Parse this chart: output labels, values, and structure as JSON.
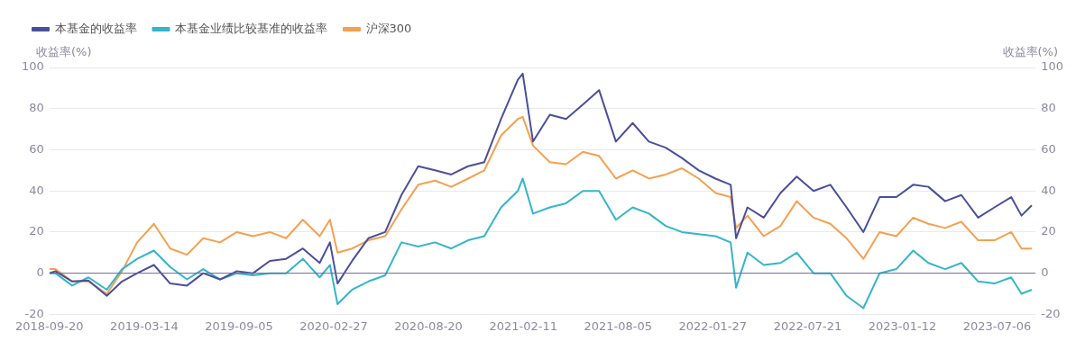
{
  "chart_data": {
    "type": "line",
    "x": [
      "2018-09-20",
      "2018-10-01",
      "2018-11-01",
      "2018-12-01",
      "2019-01-04",
      "2019-02-01",
      "2019-03-01",
      "2019-04-01",
      "2019-05-01",
      "2019-06-01",
      "2019-07-01",
      "2019-08-01",
      "2019-09-01",
      "2019-10-01",
      "2019-11-01",
      "2019-12-01",
      "2020-01-01",
      "2020-02-01",
      "2020-02-20",
      "2020-03-05",
      "2020-04-01",
      "2020-05-01",
      "2020-06-01",
      "2020-07-01",
      "2020-08-01",
      "2020-09-01",
      "2020-10-01",
      "2020-11-01",
      "2020-12-01",
      "2021-01-01",
      "2021-02-01",
      "2021-02-10",
      "2021-03-01",
      "2021-04-01",
      "2021-05-01",
      "2021-06-01",
      "2021-07-01",
      "2021-08-01",
      "2021-09-01",
      "2021-10-01",
      "2021-11-01",
      "2021-12-01",
      "2022-01-01",
      "2022-02-01",
      "2022-03-01",
      "2022-03-11",
      "2022-04-01",
      "2022-05-01",
      "2022-06-01",
      "2022-07-01",
      "2022-08-01",
      "2022-09-01",
      "2022-10-01",
      "2022-11-01",
      "2022-12-01",
      "2023-01-01",
      "2023-02-01",
      "2023-03-01",
      "2023-04-01",
      "2023-05-01",
      "2023-06-01",
      "2023-07-01",
      "2023-08-01",
      "2023-08-20",
      "2023-09-08"
    ],
    "series": [
      {
        "name": "本基金的收益率",
        "color": "#4a4f9a",
        "values": [
          0,
          1,
          -4,
          -3.5,
          -11,
          -4,
          0,
          4,
          -5,
          -6,
          0,
          -3,
          1,
          0,
          6,
          7,
          12,
          5,
          15,
          -5,
          6,
          17,
          20,
          38,
          52,
          50,
          48,
          52,
          54,
          75,
          94,
          97,
          64,
          77,
          75,
          82,
          89,
          64,
          73,
          64,
          61,
          56,
          50,
          46,
          43,
          17,
          32,
          27,
          39,
          47,
          40,
          43,
          32,
          20,
          37,
          37,
          43,
          42,
          35,
          38,
          27,
          32,
          37,
          28,
          33
        ]
      },
      {
        "name": "本基金业绩比较基准的收益率",
        "color": "#35b5c9",
        "values": [
          0,
          0,
          -6,
          -2,
          -8,
          2,
          7,
          11,
          3,
          -3,
          2,
          -3,
          0,
          -1,
          0,
          0,
          7,
          -2,
          4,
          -15,
          -8,
          -4,
          -1,
          15,
          13,
          15,
          12,
          16,
          18,
          32,
          40,
          46,
          29,
          32,
          34,
          40,
          40,
          26,
          32,
          29,
          23,
          20,
          19,
          18,
          15,
          -7,
          10,
          4,
          5,
          10,
          0,
          0,
          -11,
          -17,
          0,
          2,
          11,
          5,
          2,
          5,
          -4,
          -5,
          -2,
          -10,
          -8
        ]
      },
      {
        "name": "沪深300",
        "color": "#f5a04f",
        "values": [
          2,
          2,
          -4,
          -4,
          -10,
          1,
          15,
          24,
          12,
          9,
          17,
          15,
          20,
          18,
          20,
          17,
          26,
          18,
          26,
          10,
          12,
          16,
          18,
          31,
          43,
          45,
          42,
          46,
          50,
          67,
          75,
          76,
          62,
          54,
          53,
          59,
          57,
          46,
          50,
          46,
          48,
          51,
          46,
          39,
          37,
          22,
          28,
          18,
          23,
          35,
          27,
          24,
          17,
          7,
          20,
          18,
          27,
          24,
          22,
          25,
          16,
          16,
          20,
          12,
          12
        ]
      }
    ],
    "xlim": [
      "2018-09-20",
      "2023-09-15"
    ],
    "xticks": [
      "2018-09-20",
      "2019-03-14",
      "2019-09-05",
      "2020-02-27",
      "2020-08-20",
      "2021-02-11",
      "2021-08-05",
      "2022-01-27",
      "2022-07-21",
      "2023-01-12",
      "2023-07-06"
    ],
    "ylim": [
      -20,
      100
    ],
    "yticks": [
      -20,
      0,
      20,
      40,
      60,
      80,
      100
    ],
    "y2lim": [
      -20,
      100
    ],
    "y2ticks": [
      -20,
      0,
      20,
      40,
      60,
      80,
      100
    ],
    "ylabel": "收益率(%)",
    "y2label": "收益率(%)",
    "ref_lines": [
      {
        "axis": "y",
        "value": 0,
        "color": "#6a6a96"
      }
    ],
    "grid": "y",
    "legend": "top left",
    "marker": "none",
    "line_style": "solid"
  }
}
